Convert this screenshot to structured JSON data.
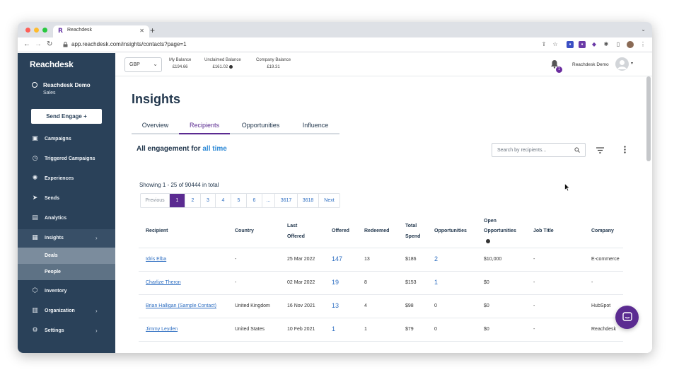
{
  "browser": {
    "tab_title": "Reachdesk",
    "url": "app.reachdesk.com/insights/contacts?page=1"
  },
  "sidebar": {
    "logo": "Reachdesk",
    "user_name": "Reachdesk Demo",
    "user_team": "Sales",
    "send_button": "Send Engage  +",
    "items": [
      {
        "label": "Campaigns",
        "icon": "gift-icon"
      },
      {
        "label": "Triggered Campaigns",
        "icon": "clock-icon"
      },
      {
        "label": "Experiences",
        "icon": "lightbulb-icon"
      },
      {
        "label": "Sends",
        "icon": "send-icon"
      },
      {
        "label": "Analytics",
        "icon": "chart-icon"
      },
      {
        "label": "Insights",
        "icon": "insights-icon"
      },
      {
        "label": "Inventory",
        "icon": "box-icon"
      },
      {
        "label": "Organization",
        "icon": "building-icon"
      },
      {
        "label": "Settings",
        "icon": "settings-icon"
      }
    ],
    "subitems": [
      {
        "label": "Deals"
      },
      {
        "label": "People"
      }
    ]
  },
  "topbar": {
    "currency": "GBP",
    "balances": [
      {
        "label": "My Balance",
        "value": "£194.66"
      },
      {
        "label": "Unclaimed Balance",
        "value": "£161.02"
      },
      {
        "label": "Company Balance",
        "value": "£19.31"
      }
    ],
    "notification_count": "1",
    "account_name": "Reachdesk Demo"
  },
  "page": {
    "title": "Insights",
    "tabs": [
      {
        "label": "Overview"
      },
      {
        "label": "Recipients"
      },
      {
        "label": "Opportunities"
      },
      {
        "label": "Influence"
      }
    ],
    "engagement_prefix": "All engagement for ",
    "engagement_range": "all time",
    "search_placeholder": "Search by recipients...",
    "showing_text": "Showing 1 - 25 of 90444 in total",
    "pagination": [
      "Previous",
      "1",
      "2",
      "3",
      "4",
      "5",
      "6",
      "...",
      "3617",
      "3618",
      "Next"
    ]
  },
  "table": {
    "headers": {
      "recipient": "Recipient",
      "country": "Country",
      "last_offered_1": "Last",
      "last_offered_2": "Offered",
      "offered": "Offered",
      "redeemed": "Redeemed",
      "total_spend_1": "Total",
      "total_spend_2": "Spend",
      "opportunities": "Opportunities",
      "open_opps_1": "Open",
      "open_opps_2": "Opportunities",
      "job_title": "Job Title",
      "company": "Company"
    },
    "rows": [
      {
        "recipient": "Idris Elba",
        "country": "-",
        "last_offered": "25 Mar 2022",
        "offered": "147",
        "redeemed": "13",
        "total_spend": "$186",
        "opportunities": "2",
        "open_opportunities": "$10,000",
        "job_title": "-",
        "company": "E-commerce"
      },
      {
        "recipient": "Charlize Theron",
        "country": "-",
        "last_offered": "02 Mar 2022",
        "offered": "19",
        "redeemed": "8",
        "total_spend": "$153",
        "opportunities": "1",
        "open_opportunities": "$0",
        "job_title": "-",
        "company": "-"
      },
      {
        "recipient": "Brian Halligan (Sample Contact)",
        "country": "United Kingdom",
        "last_offered": "16 Nov 2021",
        "offered": "13",
        "redeemed": "4",
        "total_spend": "$98",
        "opportunities": "0",
        "open_opportunities": "$0",
        "job_title": "-",
        "company": "HubSpot"
      },
      {
        "recipient": "Jimmy Leyden",
        "country": "United States",
        "last_offered": "10 Feb 2021",
        "offered": "1",
        "redeemed": "1",
        "total_spend": "$79",
        "opportunities": "0",
        "open_opportunities": "$0",
        "job_title": "-",
        "company": "Reachdesk"
      }
    ]
  }
}
